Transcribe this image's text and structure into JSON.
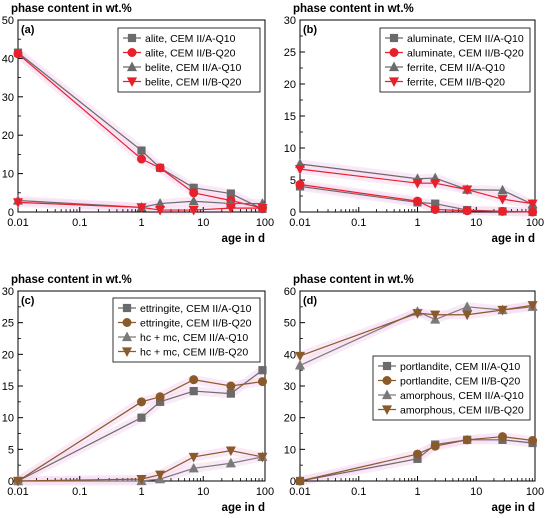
{
  "colors": {
    "gray": "#6b6b6b",
    "red": "#e8202a",
    "brown": "#8b5a2b",
    "gray2": "#7a7a7a",
    "highlight": "#f6d9f2"
  },
  "chart_data": [
    {
      "panel": "(a)",
      "type": "line",
      "ylabel": "phase content in wt.%",
      "xlabel": "age in d",
      "xscale": "log",
      "xlim": [
        0.01,
        100
      ],
      "ylim": [
        0,
        50
      ],
      "xticks": [
        "0.01",
        "0.1",
        "1",
        "10",
        "100"
      ],
      "yticks": [
        "0",
        "10",
        "20",
        "30",
        "40",
        "50"
      ],
      "legend_position": "top-right",
      "series": [
        {
          "name": "alite, CEM II/A-Q10",
          "color": "#6b6b6b",
          "marker": "square",
          "x": [
            0.01,
            1,
            2,
            7,
            28,
            91
          ],
          "y": [
            41.5,
            16,
            11.5,
            6.3,
            4.8,
            0.8
          ]
        },
        {
          "name": "alite, CEM II/B-Q20",
          "color": "#e8202a",
          "marker": "circle",
          "x": [
            0.01,
            1,
            2,
            7,
            28,
            91
          ],
          "y": [
            41.2,
            13.8,
            11.5,
            5.0,
            3.0,
            1.0
          ]
        },
        {
          "name": "belite, CEM II/A-Q10",
          "color": "#6b6b6b",
          "marker": "triangle-up",
          "x": [
            0.01,
            1,
            2,
            7,
            28,
            91
          ],
          "y": [
            3.0,
            1.2,
            2.2,
            2.8,
            2.2,
            2.2
          ]
        },
        {
          "name": "belite, CEM II/B-Q20",
          "color": "#e8202a",
          "marker": "triangle-down",
          "x": [
            0.01,
            1,
            2,
            7,
            28,
            91
          ],
          "y": [
            2.5,
            1.2,
            0.5,
            0.5,
            1.0,
            1.0
          ]
        }
      ]
    },
    {
      "panel": "(b)",
      "type": "line",
      "ylabel": "phase content in wt.%",
      "xlabel": "age in d",
      "xscale": "log",
      "xlim": [
        0.01,
        100
      ],
      "ylim": [
        0,
        30
      ],
      "xticks": [
        "0.01",
        "0.1",
        "1",
        "10",
        "100"
      ],
      "yticks": [
        "0",
        "5",
        "10",
        "15",
        "20",
        "25",
        "30"
      ],
      "legend_position": "top-right",
      "series": [
        {
          "name": "aluminate, CEM II/A-Q10",
          "color": "#6b6b6b",
          "marker": "square",
          "x": [
            0.01,
            1,
            2,
            7,
            28,
            91
          ],
          "y": [
            4.0,
            1.5,
            1.3,
            0.3,
            0.1,
            0.0
          ]
        },
        {
          "name": "aluminate, CEM II/B-Q20",
          "color": "#e8202a",
          "marker": "circle",
          "x": [
            0.01,
            1,
            2,
            7,
            28,
            91
          ],
          "y": [
            4.3,
            1.7,
            0.4,
            0.2,
            0.1,
            0.0
          ]
        },
        {
          "name": "ferrite, CEM II/A-Q10",
          "color": "#6b6b6b",
          "marker": "triangle-up",
          "x": [
            0.01,
            1,
            2,
            7,
            28,
            91
          ],
          "y": [
            7.5,
            5.2,
            5.3,
            3.5,
            3.4,
            1.2
          ]
        },
        {
          "name": "ferrite, CEM II/B-Q20",
          "color": "#e8202a",
          "marker": "triangle-down",
          "x": [
            0.01,
            1,
            2,
            7,
            28,
            91
          ],
          "y": [
            6.7,
            4.5,
            4.5,
            3.5,
            2.0,
            1.3
          ]
        }
      ]
    },
    {
      "panel": "(c)",
      "type": "line",
      "ylabel": "phase content in wt.%",
      "xlabel": "age in d",
      "xscale": "log",
      "xlim": [
        0.01,
        100
      ],
      "ylim": [
        0,
        30
      ],
      "xticks": [
        "0.01",
        "0.1",
        "1",
        "10",
        "100"
      ],
      "yticks": [
        "0",
        "5",
        "10",
        "15",
        "20",
        "25",
        "30"
      ],
      "legend_position": "top-right",
      "series": [
        {
          "name": "ettringite, CEM II/A-Q10",
          "color": "#6b6b6b",
          "marker": "square",
          "x": [
            0.01,
            1,
            2,
            7,
            28,
            91
          ],
          "y": [
            0.0,
            10.0,
            12.5,
            14.2,
            13.8,
            17.5
          ]
        },
        {
          "name": "ettringite, CEM II/B-Q20",
          "color": "#8b5a2b",
          "marker": "circle",
          "x": [
            0.01,
            1,
            2,
            7,
            28,
            91
          ],
          "y": [
            0.0,
            12.5,
            13.3,
            16.0,
            15.0,
            15.7
          ]
        },
        {
          "name": "hc + mc, CEM II/A-Q10",
          "color": "#7a7a7a",
          "marker": "triangle-up",
          "x": [
            0.01,
            1,
            2,
            7,
            28,
            91
          ],
          "y": [
            0.0,
            0.0,
            0.3,
            2.0,
            2.8,
            3.8
          ]
        },
        {
          "name": "hc + mc, CEM II/B-Q20",
          "color": "#8b5a2b",
          "marker": "triangle-down",
          "x": [
            0.01,
            1,
            2,
            7,
            28,
            91
          ],
          "y": [
            0.0,
            0.3,
            1.0,
            3.8,
            4.8,
            3.8
          ]
        }
      ]
    },
    {
      "panel": "(d)",
      "type": "line",
      "ylabel": "phase content in wt.%",
      "xlabel": "age in d",
      "xscale": "log",
      "xlim": [
        0.01,
        100
      ],
      "ylim": [
        0,
        60
      ],
      "xticks": [
        "0.01",
        "0.1",
        "1",
        "10",
        "100"
      ],
      "yticks": [
        "0",
        "10",
        "20",
        "30",
        "40",
        "50",
        "60"
      ],
      "legend_position": "center-right",
      "series": [
        {
          "name": "portlandite, CEM II/A-Q10",
          "color": "#6b6b6b",
          "marker": "square",
          "x": [
            0.01,
            1,
            2,
            7,
            28,
            91
          ],
          "y": [
            0.0,
            7.0,
            11.5,
            13.0,
            13.0,
            12.0
          ]
        },
        {
          "name": "portlandite, CEM II/B-Q20",
          "color": "#8b5a2b",
          "marker": "circle",
          "x": [
            0.01,
            1,
            2,
            7,
            28,
            91
          ],
          "y": [
            0.0,
            8.5,
            11.0,
            13.0,
            14.0,
            12.8
          ]
        },
        {
          "name": "amorphous, CEM II/A-Q10",
          "color": "#7a7a7a",
          "marker": "triangle-up",
          "x": [
            0.01,
            1,
            2,
            7,
            28,
            91
          ],
          "y": [
            36.5,
            53.5,
            51.0,
            55.0,
            54.0,
            55.0
          ]
        },
        {
          "name": "amorphous, CEM II/B-Q20",
          "color": "#8b5a2b",
          "marker": "triangle-down",
          "x": [
            0.01,
            1,
            2,
            7,
            28,
            91
          ],
          "y": [
            39.5,
            53.0,
            52.5,
            52.5,
            54.0,
            55.5
          ]
        }
      ]
    }
  ]
}
